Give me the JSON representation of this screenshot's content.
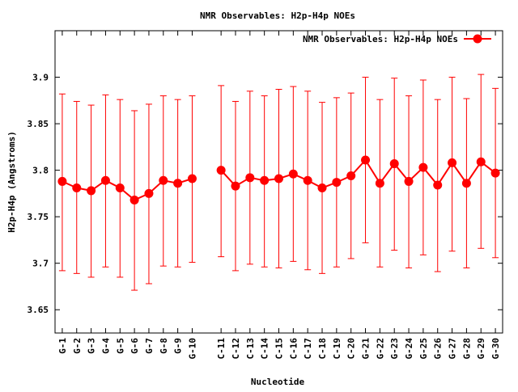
{
  "chart_data": {
    "type": "line",
    "title": "NMR Observables: H2p-H4p NOEs",
    "xlabel": "Nucleotide",
    "ylabel": "H2p-H4p (Angstroms)",
    "ylim": [
      3.625,
      3.95
    ],
    "yticks": [
      "3.65",
      "3.7",
      "3.75",
      "3.8",
      "3.85",
      "3.9"
    ],
    "legend_position": "top-right",
    "grid": false,
    "series": [
      {
        "name": "NMR Observables: H2p-H4p NOEs",
        "color": "#ff0000",
        "marker": "circle",
        "error_bars": true,
        "points": [
          {
            "x": 1,
            "label": "G-1",
            "y": 3.788,
            "ylow": 3.692,
            "yhigh": 3.882
          },
          {
            "x": 2,
            "label": "G-2",
            "y": 3.781,
            "ylow": 3.689,
            "yhigh": 3.874
          },
          {
            "x": 3,
            "label": "G-3",
            "y": 3.778,
            "ylow": 3.685,
            "yhigh": 3.87
          },
          {
            "x": 4,
            "label": "G-4",
            "y": 3.789,
            "ylow": 3.696,
            "yhigh": 3.881
          },
          {
            "x": 5,
            "label": "G-5",
            "y": 3.781,
            "ylow": 3.685,
            "yhigh": 3.876
          },
          {
            "x": 6,
            "label": "G-6",
            "y": 3.768,
            "ylow": 3.671,
            "yhigh": 3.864
          },
          {
            "x": 7,
            "label": "G-7",
            "y": 3.775,
            "ylow": 3.678,
            "yhigh": 3.871
          },
          {
            "x": 8,
            "label": "G-8",
            "y": 3.789,
            "ylow": 3.697,
            "yhigh": 3.88
          },
          {
            "x": 9,
            "label": "G-9",
            "y": 3.786,
            "ylow": 3.696,
            "yhigh": 3.876
          },
          {
            "x": 10,
            "label": "G-10",
            "y": 3.791,
            "ylow": 3.701,
            "yhigh": 3.88
          },
          {
            "x": 12,
            "label": "C-11",
            "y": 3.8,
            "ylow": 3.707,
            "yhigh": 3.891
          },
          {
            "x": 13,
            "label": "C-12",
            "y": 3.783,
            "ylow": 3.692,
            "yhigh": 3.874
          },
          {
            "x": 14,
            "label": "C-13",
            "y": 3.792,
            "ylow": 3.699,
            "yhigh": 3.885
          },
          {
            "x": 15,
            "label": "C-14",
            "y": 3.789,
            "ylow": 3.696,
            "yhigh": 3.88
          },
          {
            "x": 16,
            "label": "C-15",
            "y": 3.791,
            "ylow": 3.695,
            "yhigh": 3.887
          },
          {
            "x": 17,
            "label": "C-16",
            "y": 3.796,
            "ylow": 3.702,
            "yhigh": 3.89
          },
          {
            "x": 18,
            "label": "C-17",
            "y": 3.789,
            "ylow": 3.693,
            "yhigh": 3.885
          },
          {
            "x": 19,
            "label": "C-18",
            "y": 3.781,
            "ylow": 3.689,
            "yhigh": 3.873
          },
          {
            "x": 20,
            "label": "C-19",
            "y": 3.787,
            "ylow": 3.696,
            "yhigh": 3.878
          },
          {
            "x": 21,
            "label": "C-20",
            "y": 3.794,
            "ylow": 3.705,
            "yhigh": 3.883
          },
          {
            "x": 22,
            "label": "G-21",
            "y": 3.811,
            "ylow": 3.722,
            "yhigh": 3.9
          },
          {
            "x": 23,
            "label": "G-22",
            "y": 3.786,
            "ylow": 3.696,
            "yhigh": 3.876
          },
          {
            "x": 24,
            "label": "G-23",
            "y": 3.807,
            "ylow": 3.714,
            "yhigh": 3.899
          },
          {
            "x": 25,
            "label": "G-24",
            "y": 3.788,
            "ylow": 3.695,
            "yhigh": 3.88
          },
          {
            "x": 26,
            "label": "G-25",
            "y": 3.803,
            "ylow": 3.709,
            "yhigh": 3.897
          },
          {
            "x": 27,
            "label": "G-26",
            "y": 3.784,
            "ylow": 3.691,
            "yhigh": 3.876
          },
          {
            "x": 28,
            "label": "G-27",
            "y": 3.808,
            "ylow": 3.713,
            "yhigh": 3.9
          },
          {
            "x": 29,
            "label": "G-28",
            "y": 3.786,
            "ylow": 3.695,
            "yhigh": 3.877
          },
          {
            "x": 30,
            "label": "G-29",
            "y": 3.809,
            "ylow": 3.716,
            "yhigh": 3.903
          },
          {
            "x": 31,
            "label": "G-30",
            "y": 3.797,
            "ylow": 3.706,
            "yhigh": 3.888
          }
        ]
      }
    ]
  }
}
